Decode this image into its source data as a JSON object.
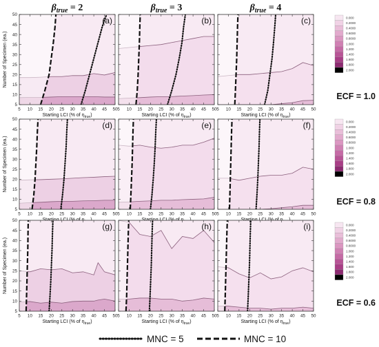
{
  "figure": {
    "col_headers": [
      {
        "beta": "β",
        "sub": "true",
        "rest": " = 2"
      },
      {
        "beta": "β",
        "sub": "true",
        "rest": " = 3"
      },
      {
        "beta": "β",
        "sub": "true",
        "rest": " = 4"
      }
    ],
    "row_labels": [
      "ECF = 1.0",
      "ECF = 0.8",
      "ECF = 0.6"
    ],
    "ylabel": "Number of Specimen (ea.)",
    "xlabel_main": "Starting LCI (% of η",
    "xlabel_sub": "true",
    "xlabel_end": ")",
    "legend": {
      "dotted_label": "MNC = 5",
      "dashed_label": "MNC = 10"
    },
    "colorbar": {
      "labels": [
        "0.000",
        "0.2000",
        "0.4000",
        "0.6000",
        "0.8000",
        "1.000",
        "1.200",
        "1.400",
        "1.600",
        "1.800",
        "2.000"
      ],
      "colors": [
        "#f7e6f1",
        "#f0d2e5",
        "#e9bed9",
        "#e2aacd",
        "#db96c1",
        "#d080b3",
        "#c56aa5",
        "#b85496",
        "#a83e86",
        "#8c2a70",
        "#000000"
      ]
    }
  },
  "chart_data": [
    {
      "panel": "(a)",
      "type": "area",
      "beta_true": 2,
      "ecf": 1.0,
      "x": [
        5,
        10,
        15,
        20,
        25,
        30,
        35,
        40,
        45,
        50
      ],
      "xlim": [
        5,
        50
      ],
      "ylim": [
        5,
        50
      ],
      "xticks": [
        5,
        10,
        15,
        20,
        25,
        30,
        35,
        40,
        45,
        50
      ],
      "yticks": [
        5,
        10,
        15,
        20,
        25,
        30,
        35,
        40,
        45,
        50
      ],
      "contour_levels": [
        {
          "y": [
            18.5,
            18.5,
            18.7,
            19,
            19,
            19.5,
            19.5,
            20.5,
            19.8,
            21
          ],
          "fill": "#edd0e4"
        },
        {
          "y": [
            8.5,
            8.6,
            8.6,
            8.8,
            9,
            9,
            9,
            9,
            8.8,
            8.8
          ],
          "fill": "#dba8cb"
        }
      ],
      "mnc5": {
        "x": [
          34,
          36,
          38,
          40,
          42,
          44,
          46
        ],
        "y": [
          5,
          12,
          20,
          28,
          36,
          44,
          50
        ]
      },
      "mnc10": {
        "x": [
          15,
          17,
          19,
          20,
          21,
          21.8,
          22.2
        ],
        "y": [
          5,
          12,
          20,
          28,
          36,
          44,
          50
        ]
      }
    },
    {
      "panel": "(b)",
      "type": "area",
      "beta_true": 3,
      "ecf": 1.0,
      "x": [
        5,
        10,
        15,
        20,
        25,
        30,
        35,
        40,
        45,
        50
      ],
      "xlim": [
        5,
        50
      ],
      "ylim": [
        5,
        50
      ],
      "xticks": [
        5,
        10,
        15,
        20,
        25,
        30,
        35,
        40,
        45,
        50
      ],
      "yticks": [
        5,
        10,
        15,
        20,
        25,
        30,
        35,
        40,
        45,
        50
      ],
      "contour_levels": [
        {
          "y": [
            33,
            33.5,
            34,
            34.5,
            35,
            36,
            37,
            38,
            39,
            39
          ],
          "fill": "#f3dcec"
        },
        {
          "y": [
            8,
            8.3,
            8.5,
            8.8,
            9,
            9,
            9.3,
            9.5,
            9.8,
            10
          ],
          "fill": "#e6bdd8"
        }
      ],
      "mnc5": {
        "x": [
          28,
          30,
          32,
          33.5,
          34.8,
          35.6,
          36.4
        ],
        "y": [
          5,
          12,
          20,
          28,
          36,
          44,
          50
        ]
      },
      "mnc10": {
        "x": [
          13.2,
          13.8,
          14.2,
          14.5,
          14.8,
          15,
          15.2
        ],
        "y": [
          5,
          12,
          20,
          28,
          36,
          44,
          50
        ]
      }
    },
    {
      "panel": "(c)",
      "type": "area",
      "beta_true": 4,
      "ecf": 1.0,
      "x": [
        5,
        10,
        15,
        20,
        25,
        30,
        35,
        40,
        45,
        50
      ],
      "xlim": [
        5,
        50
      ],
      "ylim": [
        5,
        50
      ],
      "xticks": [
        5,
        10,
        15,
        20,
        25,
        30,
        35,
        40,
        45,
        50
      ],
      "yticks": [
        5,
        10,
        15,
        20,
        25,
        30,
        35,
        40,
        45,
        50
      ],
      "contour_levels": [
        {
          "y": [
            19,
            19.5,
            20,
            20,
            20.5,
            21,
            21.5,
            23,
            26,
            24.5
          ],
          "fill": "#f5e0ee"
        },
        {
          "y": [
            5,
            5,
            5,
            5,
            5,
            5,
            5.5,
            6,
            7,
            7.2
          ],
          "fill": "#e6bdd8"
        }
      ],
      "mnc5": {
        "x": [
          27,
          28.5,
          29.5,
          30.5,
          31.2,
          31.8,
          32.2
        ],
        "y": [
          5,
          12,
          20,
          28,
          36,
          44,
          50
        ]
      },
      "mnc10": {
        "x": [
          13,
          13.3,
          13.6,
          13.9,
          14.1,
          14.3,
          14.5
        ],
        "y": [
          5,
          12,
          20,
          28,
          36,
          44,
          50
        ]
      }
    },
    {
      "panel": "(d)",
      "type": "area",
      "beta_true": 2,
      "ecf": 0.8,
      "x": [
        5,
        10,
        15,
        20,
        25,
        30,
        35,
        40,
        45,
        50
      ],
      "xlim": [
        5,
        50
      ],
      "ylim": [
        5,
        50
      ],
      "xticks": [
        5,
        10,
        15,
        20,
        25,
        30,
        35,
        40,
        45,
        50
      ],
      "yticks": [
        5,
        10,
        15,
        20,
        25,
        30,
        35,
        40,
        45,
        50
      ],
      "contour_levels": [
        {
          "y": [
            19.5,
            19.7,
            19.8,
            20,
            20.2,
            20.5,
            20.8,
            21,
            21.3,
            21.5
          ],
          "fill": "#edd0e4"
        },
        {
          "y": [
            8,
            8.3,
            8.5,
            8.8,
            9,
            9,
            9.2,
            9.3,
            9.5,
            9.5
          ],
          "fill": "#dba8cb"
        }
      ],
      "mnc5": {
        "x": [
          24.5,
          25.3,
          26,
          26.5,
          27,
          27.3,
          27.6
        ],
        "y": [
          5,
          12,
          20,
          28,
          36,
          44,
          50
        ]
      },
      "mnc10": {
        "x": [
          11,
          11.8,
          12.4,
          12.8,
          13.2,
          13.5,
          13.8
        ],
        "y": [
          5,
          12,
          20,
          28,
          36,
          44,
          50
        ]
      }
    },
    {
      "panel": "(e)",
      "type": "area",
      "beta_true": 3,
      "ecf": 0.8,
      "x": [
        5,
        10,
        15,
        20,
        25,
        30,
        35,
        40,
        45,
        50
      ],
      "xlim": [
        5,
        50
      ],
      "ylim": [
        5,
        50
      ],
      "xticks": [
        5,
        10,
        15,
        20,
        25,
        30,
        35,
        40,
        45,
        50
      ],
      "yticks": [
        5,
        10,
        15,
        20,
        25,
        30,
        35,
        40,
        45,
        50
      ],
      "contour_levels": [
        {
          "y": [
            37,
            36.5,
            37,
            36,
            35.5,
            36,
            37,
            37,
            38.5,
            40.5
          ],
          "fill": "#f3dcec"
        },
        {
          "y": [
            8.5,
            8.7,
            9,
            9.2,
            9.5,
            9.5,
            9.8,
            10,
            10.2,
            11
          ],
          "fill": "#e6bdd8"
        }
      ],
      "mnc5": {
        "x": [
          20,
          20.7,
          21.3,
          21.8,
          22.2,
          22.5,
          22.8
        ],
        "y": [
          5,
          12,
          20,
          28,
          36,
          44,
          50
        ]
      },
      "mnc10": {
        "x": [
          10.5,
          10.8,
          11.1,
          11.4,
          11.6,
          11.8,
          12
        ],
        "y": [
          5,
          12,
          20,
          28,
          36,
          44,
          50
        ]
      }
    },
    {
      "panel": "(f)",
      "type": "area",
      "beta_true": 4,
      "ecf": 0.8,
      "x": [
        5,
        10,
        15,
        20,
        25,
        30,
        35,
        40,
        45,
        50
      ],
      "xlim": [
        5,
        50
      ],
      "ylim": [
        5,
        50
      ],
      "xticks": [
        5,
        10,
        15,
        20,
        25,
        30,
        35,
        40,
        45,
        50
      ],
      "yticks": [
        5,
        10,
        15,
        20,
        25,
        30,
        35,
        40,
        45,
        50
      ],
      "contour_levels": [
        {
          "y": [
            20.5,
            20.5,
            19.5,
            20.5,
            21.5,
            22,
            22,
            23,
            26,
            25
          ],
          "fill": "#f5e0ee"
        },
        {
          "y": [
            5,
            5,
            5,
            5,
            5,
            5.3,
            5.8,
            6.3,
            7,
            7
          ],
          "fill": "#e6bdd8"
        }
      ],
      "mnc5": {
        "x": [
          23,
          23.4,
          23.8,
          24.1,
          24.4,
          24.6,
          24.8
        ],
        "y": [
          5,
          12,
          20,
          28,
          36,
          44,
          50
        ]
      },
      "mnc10": {
        "x": [
          10.5,
          10.7,
          10.9,
          11.1,
          11.3,
          11.5,
          11.7
        ],
        "y": [
          5,
          12,
          20,
          28,
          36,
          44,
          50
        ]
      }
    },
    {
      "panel": "(g)",
      "type": "area",
      "beta_true": 2,
      "ecf": 0.6,
      "x": [
        5,
        10,
        15,
        20,
        25,
        30,
        35,
        40,
        42,
        45,
        50
      ],
      "xlim": [
        5,
        50
      ],
      "ylim": [
        5,
        50
      ],
      "xticks": [
        5,
        10,
        15,
        20,
        25,
        30,
        35,
        40,
        45,
        50
      ],
      "yticks": [
        5,
        10,
        15,
        20,
        25,
        30,
        35,
        40,
        45,
        50
      ],
      "contour_levels": [
        {
          "y": [
            25,
            24.5,
            26,
            25.5,
            26,
            24,
            24.5,
            23,
            29,
            24.5,
            23
          ],
          "fill": "#edd0e4"
        },
        {
          "y": [
            9.5,
            9.8,
            9,
            9.5,
            9,
            9.8,
            10,
            10,
            10.5,
            11,
            10
          ],
          "fill": "#dba8cb"
        }
      ],
      "mnc5": {
        "x": [
          19,
          19.4,
          19.8,
          20.1,
          20.4,
          20.6,
          20.8
        ],
        "y": [
          5,
          12,
          20,
          28,
          36,
          44,
          50
        ]
      },
      "mnc10": {
        "x": [
          8.2,
          8.4,
          8.6,
          8.8,
          9,
          9.1,
          9.2
        ],
        "y": [
          5,
          12,
          20,
          28,
          36,
          44,
          50
        ]
      }
    },
    {
      "panel": "(h)",
      "type": "area",
      "beta_true": 3,
      "ecf": 0.6,
      "x": [
        5,
        10,
        15,
        20,
        25,
        30,
        35,
        40,
        45,
        50
      ],
      "xlim": [
        5,
        50
      ],
      "ylim": [
        5,
        50
      ],
      "xticks": [
        5,
        10,
        15,
        20,
        25,
        30,
        35,
        40,
        45,
        50
      ],
      "yticks": [
        5,
        10,
        15,
        20,
        25,
        30,
        35,
        40,
        45,
        50
      ],
      "contour_levels": [
        {
          "y": [
            51,
            49,
            43,
            42,
            45,
            36,
            42,
            41,
            45,
            39
          ],
          "fill": "#f3dcec"
        },
        {
          "y": [
            11,
            11,
            11.5,
            11.5,
            11,
            11,
            10,
            10.5,
            11.5,
            11
          ],
          "fill": "#e6bdd8"
        }
      ],
      "mnc5": {
        "x": [
          19.5,
          19.8,
          20.1,
          20.4,
          20.6,
          20.8,
          21
        ],
        "y": [
          5,
          12,
          20,
          28,
          36,
          44,
          50
        ]
      },
      "mnc10": {
        "x": [
          8.5,
          8.8,
          9,
          9.2,
          9.4,
          9.6,
          9.8
        ],
        "y": [
          5,
          12,
          20,
          28,
          36,
          44,
          50
        ]
      }
    },
    {
      "panel": "(i)",
      "type": "area",
      "beta_true": 4,
      "ecf": 0.6,
      "x": [
        5,
        10,
        15,
        20,
        25,
        30,
        35,
        40,
        45,
        50
      ],
      "xlim": [
        5,
        50
      ],
      "ylim": [
        5,
        50
      ],
      "xticks": [
        5,
        10,
        15,
        20,
        25,
        30,
        35,
        40,
        45,
        50
      ],
      "yticks": [
        5,
        10,
        15,
        20,
        25,
        30,
        35,
        40,
        45,
        50
      ],
      "contour_levels": [
        {
          "y": [
            27,
            26.5,
            23.5,
            21.5,
            24,
            21,
            22,
            25,
            26.5,
            24.5
          ],
          "fill": "#f5e0ee"
        },
        {
          "y": [
            7.5,
            7.5,
            7,
            6.5,
            6.5,
            6,
            6.5,
            6.5,
            7,
            6.5
          ],
          "fill": "#e6bdd8"
        }
      ],
      "mnc5": {
        "x": [
          19,
          19.3,
          19.6,
          19.9,
          20.1,
          20.3,
          20.5
        ],
        "y": [
          5,
          12,
          20,
          28,
          36,
          44,
          50
        ]
      },
      "mnc10": {
        "x": [
          8.3,
          8.5,
          8.7,
          8.9,
          9.1,
          9.3,
          9.5
        ],
        "y": [
          5,
          12,
          20,
          28,
          36,
          44,
          50
        ]
      }
    }
  ]
}
